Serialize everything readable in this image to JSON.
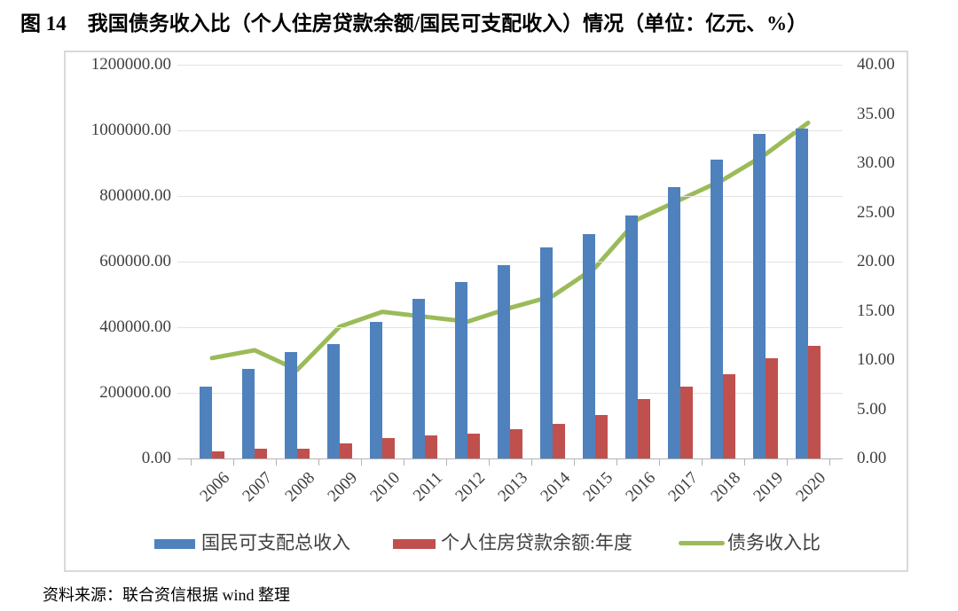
{
  "page": {
    "figure_label": "图 14",
    "title": "我国债务收入比（个人住房贷款余额/国民可支配收入）情况（单位：亿元、%）",
    "source": "资料来源：联合资信根据 wind 整理"
  },
  "colors": {
    "income_bar": "#4F81BD",
    "loan_bar": "#C0504D",
    "ratio_line": "#9BBB59",
    "gridline": "#E2E2E2",
    "axis_line": "#B3B3B3",
    "axis_text": "#3F3F3F",
    "chart_border": "#D9D9D9"
  },
  "chart_data": {
    "type": "bar",
    "subtype": "grouped-bars-with-line",
    "title": "我国债务收入比（个人住房贷款余额/国民可支配收入）情况（单位：亿元、%）",
    "categories": [
      "2006",
      "2007",
      "2008",
      "2009",
      "2010",
      "2011",
      "2012",
      "2013",
      "2014",
      "2015",
      "2016",
      "2017",
      "2018",
      "2019",
      "2020"
    ],
    "series": [
      {
        "name": "国民可支配总收入",
        "type": "bar",
        "axis": "left",
        "color": "#4F81BD",
        "values": [
          220000,
          273000,
          324000,
          350000,
          415000,
          486000,
          538000,
          590000,
          642000,
          685000,
          740000,
          828000,
          912000,
          988000,
          1005000
        ]
      },
      {
        "name": "个人住房贷款余额:年度",
        "type": "bar",
        "axis": "left",
        "color": "#C0504D",
        "values": [
          22500,
          30000,
          29000,
          47000,
          62000,
          70000,
          75000,
          90000,
          106000,
          133000,
          180000,
          218000,
          258000,
          305000,
          343000
        ]
      },
      {
        "name": "债务收入比",
        "type": "line",
        "axis": "right",
        "color": "#9BBB59",
        "values": [
          10.2,
          11.0,
          9.0,
          13.4,
          14.9,
          14.4,
          13.9,
          15.3,
          16.5,
          19.4,
          24.3,
          26.3,
          28.3,
          30.9,
          34.1
        ]
      }
    ],
    "left_axis": {
      "min": 0,
      "max": 1200000,
      "step": 200000,
      "tick_labels": [
        "0.00",
        "200000.00",
        "400000.00",
        "600000.00",
        "800000.00",
        "1000000.00",
        "1200000.00"
      ]
    },
    "right_axis": {
      "min": 0,
      "max": 40,
      "step": 5,
      "tick_labels": [
        "0.00",
        "5.00",
        "10.00",
        "15.00",
        "20.00",
        "25.00",
        "30.00",
        "35.00",
        "40.00"
      ]
    },
    "grid": true,
    "legend_position": "bottom"
  }
}
